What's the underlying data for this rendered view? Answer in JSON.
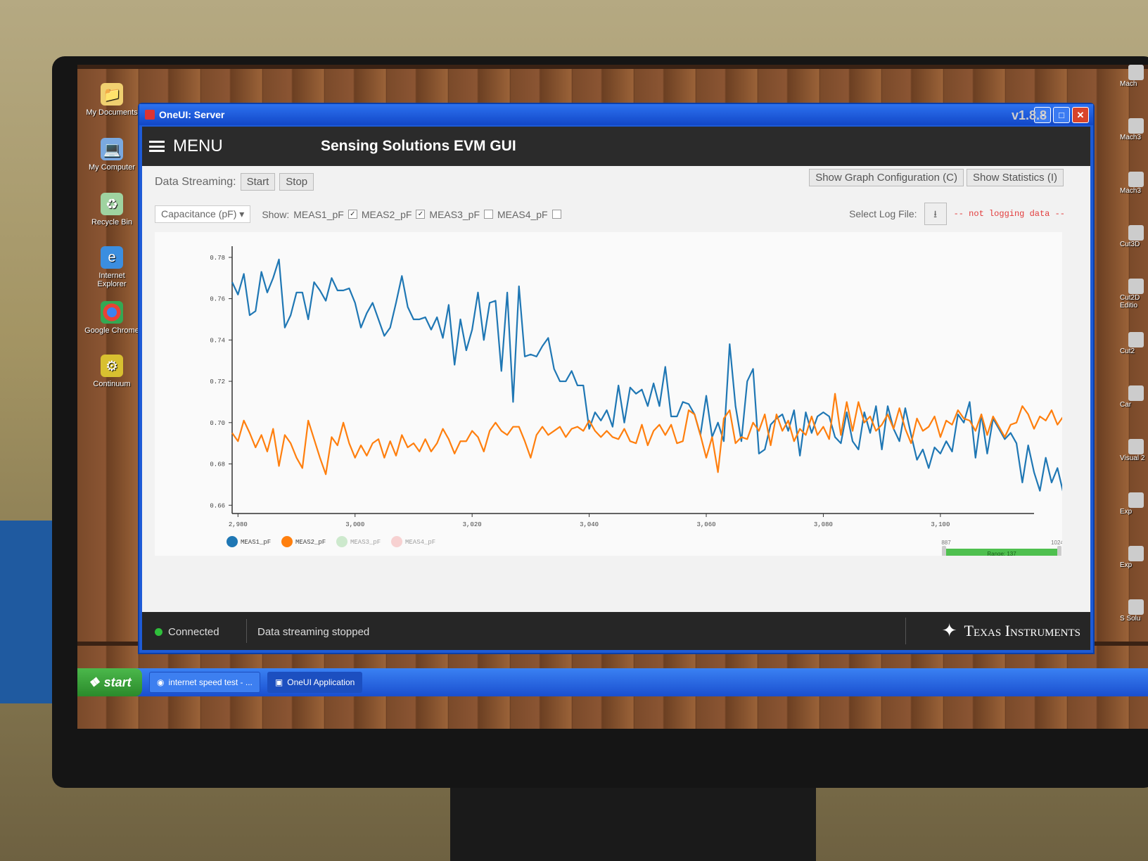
{
  "desktop": {
    "icons": [
      "My Documents",
      "My Computer",
      "Recycle Bin",
      "Internet Explorer",
      "Google Chrome",
      "Continuum"
    ],
    "right_icons": [
      "Mach",
      "Mach3",
      "Mach3",
      "Cut3D",
      "Cut2D Editio",
      "Cut2",
      "Car",
      "Visual 2",
      "Exp",
      "Exp",
      "S Solu"
    ]
  },
  "window": {
    "title": "OneUI: Server",
    "controls": [
      "minimize",
      "maximize",
      "close"
    ]
  },
  "app": {
    "menu_label": "MENU",
    "title": "Sensing Solutions EVM GUI",
    "version": "v1.8.8",
    "data_streaming_label": "Data Streaming:",
    "start_label": "Start",
    "stop_label": "Stop",
    "show_graph_config_label": "Show Graph Configuration (C)",
    "show_statistics_label": "Show Statistics (I)",
    "measure_select": "Capacitance (pF)",
    "show_label": "Show:",
    "channels": [
      {
        "label": "MEAS1_pF",
        "checked": true
      },
      {
        "label": "MEAS2_pF",
        "checked": true
      },
      {
        "label": "MEAS3_pF",
        "checked": false
      },
      {
        "label": "MEAS4_pF",
        "checked": false
      }
    ],
    "select_log_label": "Select Log File:",
    "log_status": "-- not logging data --",
    "range": {
      "start": "887",
      "end": "1024",
      "label": "Range: 137",
      "zero": "0"
    }
  },
  "status": {
    "connection": "Connected",
    "stream": "Data streaming stopped",
    "brand": "Texas Instruments"
  },
  "taskbar": {
    "start": "start",
    "tasks": [
      "internet speed test - ...",
      "OneUI Application"
    ]
  },
  "chart_data": {
    "type": "line",
    "xlim": [
      2979,
      3116
    ],
    "ylim": [
      0.656,
      0.782
    ],
    "x_ticks": [
      2980,
      3000,
      3020,
      3040,
      3060,
      3080,
      3100
    ],
    "x_tick_labels": [
      "2,980",
      "3,000",
      "3,020",
      "3,040",
      "3,060",
      "3,080",
      "3,100"
    ],
    "y_ticks": [
      0.66,
      0.68,
      0.7,
      0.72,
      0.74,
      0.76,
      0.78
    ],
    "y_tick_labels": [
      "0.66",
      "0.68",
      "0.70",
      "0.72",
      "0.74",
      "0.76",
      "0.78"
    ],
    "series": [
      {
        "name": "MEAS1_pF",
        "color": "#1f77b4",
        "values": [
          0.768,
          0.762,
          0.772,
          0.752,
          0.754,
          0.773,
          0.763,
          0.77,
          0.779,
          0.746,
          0.752,
          0.763,
          0.763,
          0.75,
          0.768,
          0.764,
          0.759,
          0.77,
          0.764,
          0.764,
          0.765,
          0.758,
          0.746,
          0.753,
          0.758,
          0.75,
          0.742,
          0.746,
          0.758,
          0.771,
          0.756,
          0.75,
          0.75,
          0.751,
          0.745,
          0.751,
          0.741,
          0.757,
          0.728,
          0.75,
          0.735,
          0.745,
          0.763,
          0.74,
          0.758,
          0.759,
          0.725,
          0.763,
          0.71,
          0.766,
          0.732,
          0.733,
          0.732,
          0.737,
          0.741,
          0.726,
          0.72,
          0.72,
          0.725,
          0.718,
          0.718,
          0.697,
          0.705,
          0.701,
          0.706,
          0.698,
          0.718,
          0.7,
          0.717,
          0.714,
          0.716,
          0.708,
          0.719,
          0.708,
          0.727,
          0.703,
          0.703,
          0.71,
          0.709,
          0.704,
          0.694,
          0.713,
          0.693,
          0.7,
          0.691,
          0.738,
          0.708,
          0.691,
          0.72,
          0.726,
          0.685,
          0.687,
          0.699,
          0.702,
          0.704,
          0.696,
          0.706,
          0.684,
          0.705,
          0.695,
          0.703,
          0.705,
          0.703,
          0.693,
          0.69,
          0.705,
          0.691,
          0.687,
          0.705,
          0.695,
          0.708,
          0.687,
          0.708,
          0.697,
          0.691,
          0.707,
          0.694,
          0.682,
          0.687,
          0.678,
          0.688,
          0.685,
          0.691,
          0.686,
          0.704,
          0.7,
          0.71,
          0.683,
          0.704,
          0.685,
          0.702,
          0.697,
          0.692,
          0.695,
          0.69,
          0.671,
          0.689,
          0.676,
          0.667,
          0.683,
          0.671,
          0.678,
          0.666,
          0.682
        ]
      },
      {
        "name": "MEAS2_pF",
        "color": "#ff7f0e",
        "values": [
          0.695,
          0.691,
          0.701,
          0.695,
          0.688,
          0.694,
          0.686,
          0.697,
          0.679,
          0.694,
          0.69,
          0.683,
          0.678,
          0.701,
          0.692,
          0.683,
          0.675,
          0.693,
          0.689,
          0.7,
          0.69,
          0.683,
          0.689,
          0.684,
          0.69,
          0.692,
          0.683,
          0.691,
          0.684,
          0.694,
          0.688,
          0.69,
          0.686,
          0.692,
          0.686,
          0.69,
          0.697,
          0.692,
          0.685,
          0.691,
          0.691,
          0.696,
          0.693,
          0.686,
          0.696,
          0.7,
          0.696,
          0.694,
          0.698,
          0.698,
          0.691,
          0.683,
          0.694,
          0.698,
          0.694,
          0.696,
          0.698,
          0.693,
          0.697,
          0.698,
          0.696,
          0.701,
          0.696,
          0.693,
          0.696,
          0.693,
          0.692,
          0.697,
          0.691,
          0.69,
          0.699,
          0.689,
          0.696,
          0.699,
          0.694,
          0.699,
          0.69,
          0.691,
          0.706,
          0.704,
          0.694,
          0.683,
          0.693,
          0.676,
          0.702,
          0.706,
          0.69,
          0.693,
          0.692,
          0.7,
          0.696,
          0.704,
          0.689,
          0.704,
          0.696,
          0.701,
          0.691,
          0.697,
          0.694,
          0.703,
          0.694,
          0.698,
          0.692,
          0.714,
          0.694,
          0.71,
          0.696,
          0.71,
          0.7,
          0.703,
          0.696,
          0.699,
          0.704,
          0.697,
          0.707,
          0.697,
          0.69,
          0.702,
          0.696,
          0.698,
          0.703,
          0.693,
          0.701,
          0.699,
          0.706,
          0.702,
          0.701,
          0.696,
          0.704,
          0.694,
          0.703,
          0.698,
          0.693,
          0.699,
          0.7,
          0.708,
          0.704,
          0.697,
          0.703,
          0.701,
          0.706,
          0.699,
          0.703
        ]
      }
    ],
    "legend": [
      "MEAS1_pF",
      "MEAS2_pF",
      "MEAS3_pF",
      "MEAS4_pF"
    ],
    "legend_position": "bottom-left",
    "grid": false
  }
}
